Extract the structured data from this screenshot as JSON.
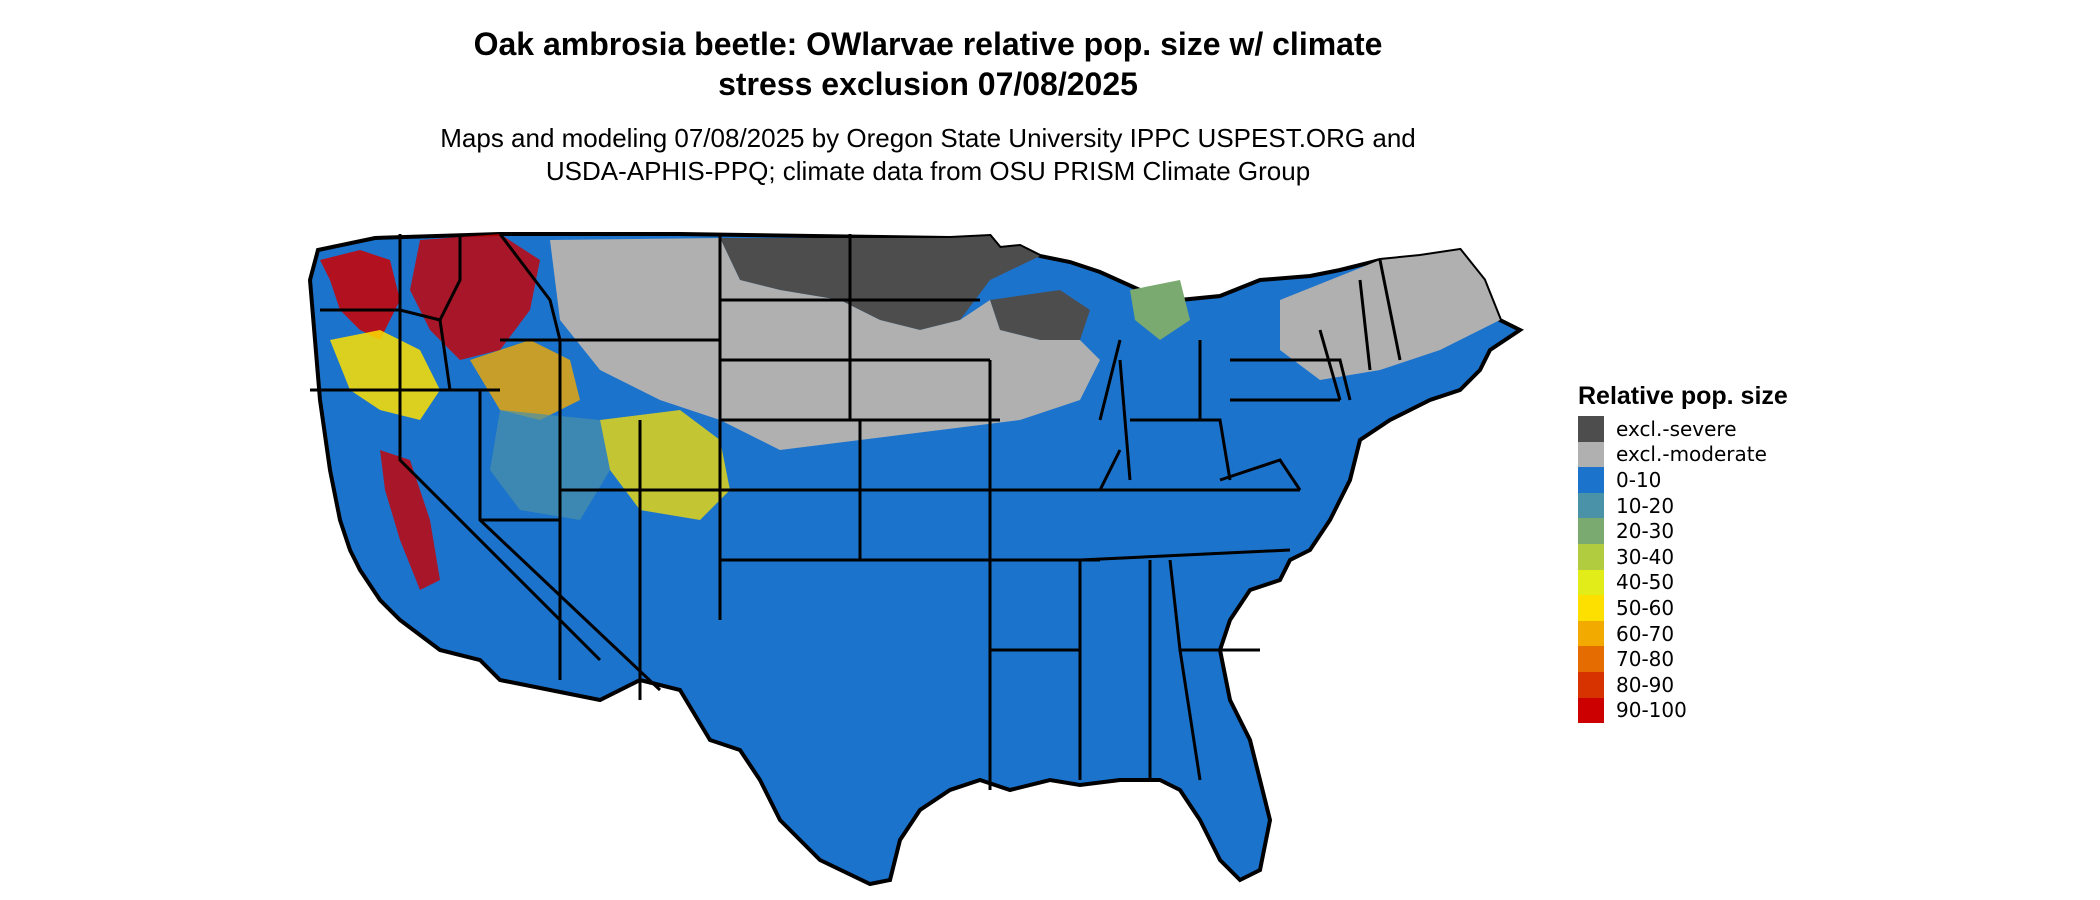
{
  "title_line1": "Oak ambrosia beetle: OWlarvae relative pop. size w/ climate",
  "title_line2": "stress exclusion 07/08/2025",
  "subtitle_line1": "Maps and modeling 07/08/2025 by Oregon State University IPPC USPEST.ORG and",
  "subtitle_line2": "USDA-APHIS-PPQ; climate data from OSU PRISM Climate Group",
  "legend": {
    "title": "Relative pop. size",
    "items": [
      {
        "label": "excl.-severe",
        "color": "#4d4d4d"
      },
      {
        "label": "excl.-moderate",
        "color": "#b0b0b0"
      },
      {
        "label": "0-10",
        "color": "#1b73cc"
      },
      {
        "label": "10-20",
        "color": "#4a92a8"
      },
      {
        "label": "20-30",
        "color": "#7aaa70"
      },
      {
        "label": "30-40",
        "color": "#b2cc40"
      },
      {
        "label": "40-50",
        "color": "#e2ec18"
      },
      {
        "label": "50-60",
        "color": "#fde000"
      },
      {
        "label": "60-70",
        "color": "#f2a900"
      },
      {
        "label": "70-80",
        "color": "#e56c00"
      },
      {
        "label": "80-90",
        "color": "#d73300"
      },
      {
        "label": "90-100",
        "color": "#cc0000"
      }
    ]
  }
}
